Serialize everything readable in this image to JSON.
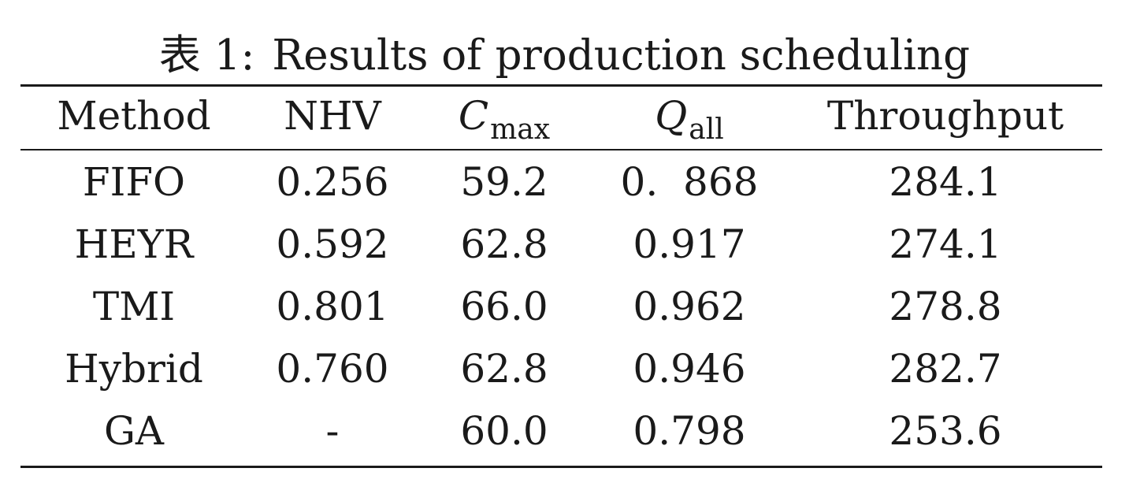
{
  "caption": {
    "label": "表 1:",
    "text": "Results of production scheduling"
  },
  "header": {
    "method": "Method",
    "nhv": "NHV",
    "cmax_symbol": "C",
    "cmax_subscript": "max",
    "qall_symbol": "Q",
    "qall_subscript": "all",
    "throughput": "Throughput"
  },
  "rows": [
    {
      "method": "FIFO",
      "nhv": "0.256",
      "cmax": "59.2",
      "qall": "0.  868",
      "throughput": "284.1"
    },
    {
      "method": "HEYR",
      "nhv": "0.592",
      "cmax": "62.8",
      "qall": "0.917",
      "throughput": "274.1"
    },
    {
      "method": "TMI",
      "nhv": "0.801",
      "cmax": "66.0",
      "qall": "0.962",
      "throughput": "278.8"
    },
    {
      "method": "Hybrid",
      "nhv": "0.760",
      "cmax": "62.8",
      "qall": "0.946",
      "throughput": "282.7"
    },
    {
      "method": "GA",
      "nhv": "-",
      "cmax": "60.0",
      "qall": "0.798",
      "throughput": "253.6"
    }
  ]
}
